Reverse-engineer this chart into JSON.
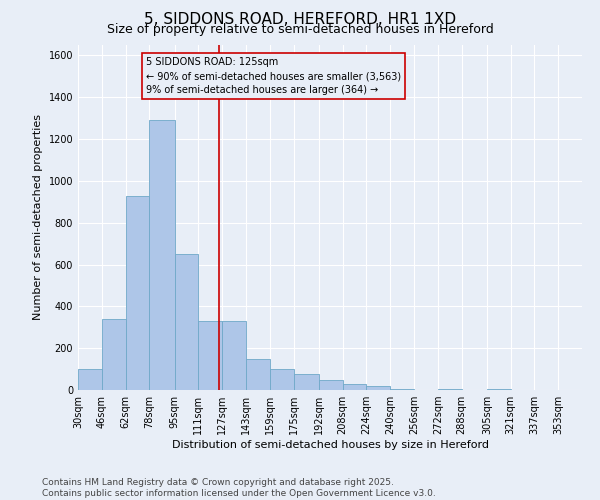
{
  "title": "5, SIDDONS ROAD, HEREFORD, HR1 1XD",
  "subtitle": "Size of property relative to semi-detached houses in Hereford",
  "xlabel": "Distribution of semi-detached houses by size in Hereford",
  "ylabel": "Number of semi-detached properties",
  "bin_labels": [
    "30sqm",
    "46sqm",
    "62sqm",
    "78sqm",
    "95sqm",
    "111sqm",
    "127sqm",
    "143sqm",
    "159sqm",
    "175sqm",
    "192sqm",
    "208sqm",
    "224sqm",
    "240sqm",
    "256sqm",
    "272sqm",
    "288sqm",
    "305sqm",
    "321sqm",
    "337sqm",
    "353sqm"
  ],
  "bar_heights": [
    100,
    340,
    930,
    1290,
    650,
    330,
    330,
    150,
    100,
    75,
    50,
    30,
    20,
    5,
    0,
    5,
    0,
    5,
    0,
    0,
    0
  ],
  "bar_left_edges": [
    30,
    46,
    62,
    78,
    95,
    111,
    127,
    143,
    159,
    175,
    192,
    208,
    224,
    240,
    256,
    272,
    288,
    305,
    321,
    337,
    353
  ],
  "bar_widths": [
    16,
    16,
    16,
    17,
    16,
    16,
    16,
    16,
    16,
    17,
    16,
    16,
    16,
    16,
    16,
    16,
    17,
    16,
    16,
    16,
    16
  ],
  "property_size": 125,
  "property_line_color": "#cc0000",
  "bar_facecolor": "#aec6e8",
  "bar_edgecolor": "#6fa8c8",
  "background_color": "#e8eef7",
  "grid_color": "#ffffff",
  "ylim": [
    0,
    1650
  ],
  "yticks": [
    0,
    200,
    400,
    600,
    800,
    1000,
    1200,
    1400,
    1600
  ],
  "annotation_text": "5 SIDDONS ROAD: 125sqm\n← 90% of semi-detached houses are smaller (3,563)\n9% of semi-detached houses are larger (364) →",
  "annotation_box_color": "#cc0000",
  "footer_text": "Contains HM Land Registry data © Crown copyright and database right 2025.\nContains public sector information licensed under the Open Government Licence v3.0.",
  "title_fontsize": 11,
  "subtitle_fontsize": 9,
  "label_fontsize": 8,
  "tick_fontsize": 7,
  "footer_fontsize": 6.5
}
